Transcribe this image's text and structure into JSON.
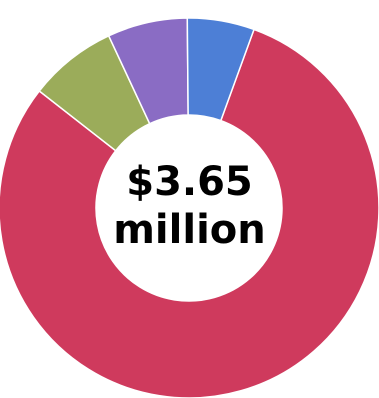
{
  "chart_data": {
    "type": "pie",
    "variant": "donut",
    "center_label": {
      "line1": "$3.65",
      "line2": "million"
    },
    "slices": [
      {
        "value": 0.8,
        "color": "#cf3a5d"
      },
      {
        "value": 0.075,
        "color": "#9bac5a"
      },
      {
        "value": 0.068,
        "color": "#8a6cc4"
      },
      {
        "value": 0.057,
        "color": "#4d7fd6"
      }
    ],
    "legend": "none"
  }
}
